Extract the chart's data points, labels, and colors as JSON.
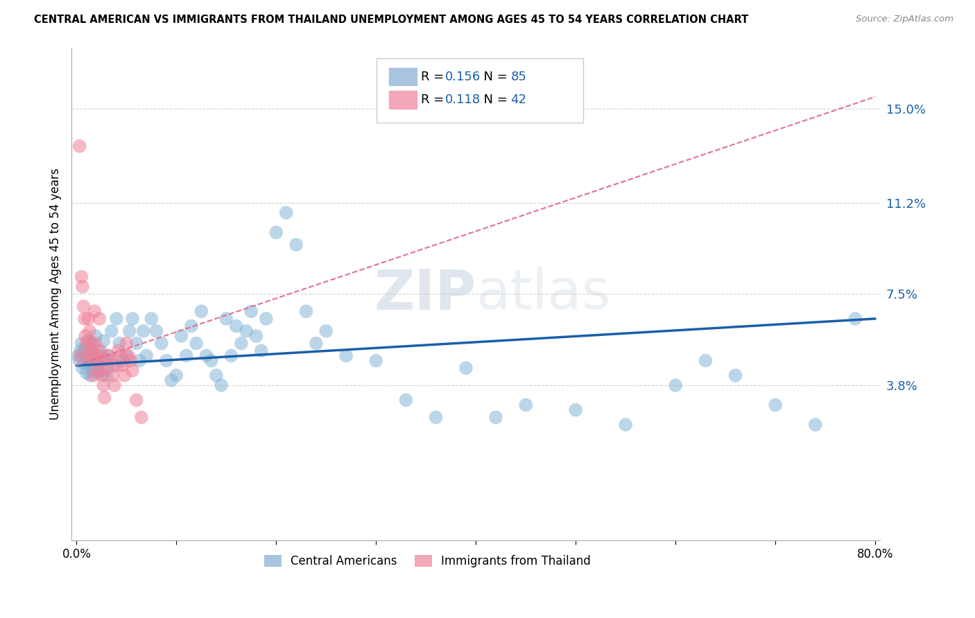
{
  "title": "CENTRAL AMERICAN VS IMMIGRANTS FROM THAILAND UNEMPLOYMENT AMONG AGES 45 TO 54 YEARS CORRELATION CHART",
  "source": "Source: ZipAtlas.com",
  "ylabel": "Unemployment Among Ages 45 to 54 years",
  "right_ytick_vals": [
    0.038,
    0.075,
    0.112,
    0.15
  ],
  "right_ytick_labels": [
    "3.8%",
    "7.5%",
    "11.2%",
    "15.0%"
  ],
  "watermark": "ZIPatlas",
  "ca_R": "0.156",
  "ca_N": "85",
  "thai_R": "0.118",
  "thai_N": "42",
  "series1_color": "#7bafd4",
  "series2_color": "#f08098",
  "trendline1_color": "#1a5fa8",
  "trendline2_color": "#e07090",
  "legend_patch1_color": "#a8c4e0",
  "legend_patch2_color": "#f4a7b9",
  "right_axis_color": "#1a5fa8",
  "rv_color": "#1a5fa8",
  "background_color": "#ffffff",
  "grid_color": "#cccccc",
  "xmin": 0.0,
  "xmax": 0.8,
  "ymin": -0.025,
  "ymax": 0.175,
  "ca_x": [
    0.002,
    0.003,
    0.004,
    0.005,
    0.006,
    0.007,
    0.008,
    0.009,
    0.01,
    0.011,
    0.012,
    0.013,
    0.014,
    0.015,
    0.016,
    0.017,
    0.018,
    0.019,
    0.02,
    0.021,
    0.022,
    0.023,
    0.025,
    0.026,
    0.027,
    0.028,
    0.03,
    0.032,
    0.035,
    0.037,
    0.04,
    0.043,
    0.046,
    0.05,
    0.053,
    0.056,
    0.06,
    0.063,
    0.067,
    0.07,
    0.075,
    0.08,
    0.085,
    0.09,
    0.095,
    0.1,
    0.105,
    0.11,
    0.115,
    0.12,
    0.125,
    0.13,
    0.135,
    0.14,
    0.145,
    0.15,
    0.155,
    0.16,
    0.165,
    0.17,
    0.175,
    0.18,
    0.185,
    0.19,
    0.2,
    0.21,
    0.22,
    0.23,
    0.24,
    0.25,
    0.27,
    0.3,
    0.33,
    0.36,
    0.39,
    0.42,
    0.45,
    0.5,
    0.55,
    0.6,
    0.63,
    0.66,
    0.7,
    0.74,
    0.78
  ],
  "ca_y": [
    0.05,
    0.048,
    0.052,
    0.055,
    0.045,
    0.05,
    0.047,
    0.053,
    0.043,
    0.05,
    0.056,
    0.048,
    0.042,
    0.055,
    0.046,
    0.05,
    0.044,
    0.058,
    0.046,
    0.043,
    0.052,
    0.047,
    0.05,
    0.044,
    0.056,
    0.048,
    0.042,
    0.05,
    0.06,
    0.046,
    0.065,
    0.055,
    0.048,
    0.05,
    0.06,
    0.065,
    0.055,
    0.048,
    0.06,
    0.05,
    0.065,
    0.06,
    0.055,
    0.048,
    0.04,
    0.042,
    0.058,
    0.05,
    0.062,
    0.055,
    0.068,
    0.05,
    0.048,
    0.042,
    0.038,
    0.065,
    0.05,
    0.062,
    0.055,
    0.06,
    0.068,
    0.058,
    0.052,
    0.065,
    0.1,
    0.108,
    0.095,
    0.068,
    0.055,
    0.06,
    0.05,
    0.048,
    0.032,
    0.025,
    0.045,
    0.025,
    0.03,
    0.028,
    0.022,
    0.038,
    0.048,
    0.042,
    0.03,
    0.022,
    0.065
  ],
  "thai_x": [
    0.003,
    0.004,
    0.005,
    0.006,
    0.007,
    0.008,
    0.009,
    0.01,
    0.011,
    0.012,
    0.013,
    0.014,
    0.015,
    0.016,
    0.017,
    0.018,
    0.019,
    0.02,
    0.021,
    0.022,
    0.023,
    0.024,
    0.025,
    0.026,
    0.027,
    0.028,
    0.03,
    0.032,
    0.034,
    0.036,
    0.038,
    0.04,
    0.042,
    0.044,
    0.046,
    0.048,
    0.05,
    0.052,
    0.054,
    0.056,
    0.06,
    0.065
  ],
  "thai_y": [
    0.135,
    0.05,
    0.082,
    0.078,
    0.07,
    0.065,
    0.058,
    0.055,
    0.05,
    0.065,
    0.06,
    0.055,
    0.052,
    0.048,
    0.042,
    0.068,
    0.055,
    0.05,
    0.048,
    0.044,
    0.065,
    0.052,
    0.048,
    0.042,
    0.038,
    0.033,
    0.045,
    0.05,
    0.048,
    0.042,
    0.038,
    0.046,
    0.052,
    0.05,
    0.046,
    0.042,
    0.055,
    0.05,
    0.048,
    0.044,
    0.032,
    0.025
  ],
  "trendline_blue_x0": 0.0,
  "trendline_blue_y0": 0.046,
  "trendline_blue_x1": 0.8,
  "trendline_blue_y1": 0.065,
  "trendline_pink_x0": 0.0,
  "trendline_pink_y0": 0.046,
  "trendline_pink_x1": 0.8,
  "trendline_pink_y1": 0.155
}
